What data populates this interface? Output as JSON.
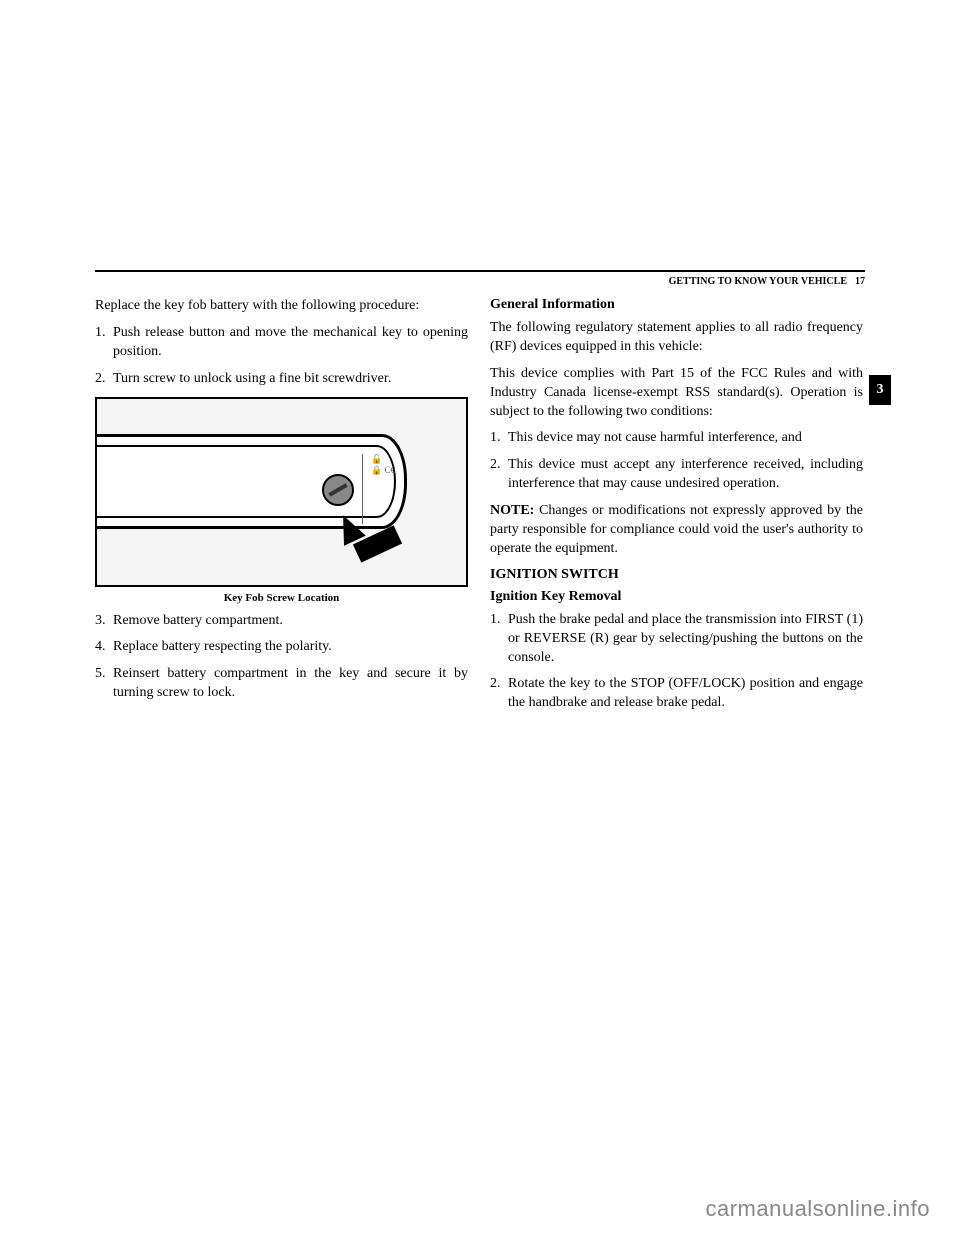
{
  "header": {
    "section_title": "GETTING TO KNOW YOUR VEHICLE",
    "page_number": "17",
    "side_tab": "3"
  },
  "left_column": {
    "intro": "Replace the key fob battery with the following procedure:",
    "steps_before_figure": [
      "Push release button and move the mechanical key to opening position.",
      "Turn screw to unlock using a fine bit screwdriver."
    ],
    "figure_caption": "Key Fob Screw Location",
    "steps_after_figure": [
      "Remove battery compartment.",
      "Replace battery respecting the polarity.",
      "Reinsert battery compartment in the key and secure it by turning screw to lock."
    ]
  },
  "right_column": {
    "heading1": "General Information",
    "para1": "The following regulatory statement applies to all radio frequency (RF) devices equipped in this vehicle:",
    "para2": "This device complies with Part 15 of the FCC Rules and with Industry Canada license-exempt RSS standard(s). Operation is subject to the following two conditions:",
    "conditions": [
      "This device may not cause harmful interference, and",
      "This device must accept any interference received, including interference that may cause undesired operation."
    ],
    "note_label": "NOTE:",
    "note_text": " Changes or modifications not expressly approved by the party responsible for compliance could void the user's authority to operate the equipment.",
    "heading2": "IGNITION SWITCH",
    "heading3": "Ignition Key Removal",
    "ignition_steps": [
      "Push the brake pedal and place the transmission into FIRST (1) or REVERSE (R) gear by selecting/pushing the buttons on the console.",
      "Rotate the key to the STOP (OFF/LOCK) position and engage the handbrake and release brake pedal."
    ]
  },
  "watermark": "carmanualsonline.info"
}
